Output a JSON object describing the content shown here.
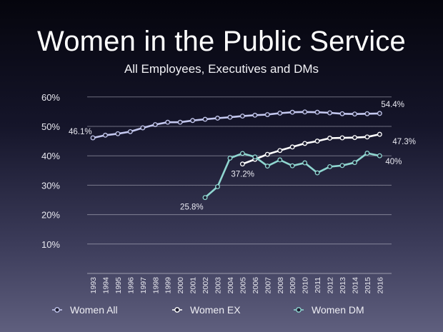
{
  "slide": {
    "title": "Women in the Public Service",
    "subtitle": "All Employees, Executives and DMs"
  },
  "chart_data": {
    "type": "line",
    "title": "Women in the Public Service",
    "subtitle": "All Employees, Executives and DMs",
    "xlabel": "",
    "ylabel": "",
    "categories": [
      "1993",
      "1994",
      "1995",
      "1996",
      "1997",
      "1998",
      "1999",
      "2000",
      "2001",
      "2002",
      "2003",
      "2004",
      "2005",
      "2006",
      "2007",
      "2008",
      "2009",
      "2010",
      "2011",
      "2012",
      "2013",
      "2014",
      "2015",
      "2016"
    ],
    "ylim": [
      0,
      60
    ],
    "yticks": [
      {
        "value": 10,
        "label": "10%"
      },
      {
        "value": 20,
        "label": "20%"
      },
      {
        "value": 30,
        "label": "30%"
      },
      {
        "value": 40,
        "label": "40%"
      },
      {
        "value": 50,
        "label": "50%"
      },
      {
        "value": 60,
        "label": "60%"
      }
    ],
    "grid": true,
    "legend_position": "bottom",
    "series": [
      {
        "name": "Women All",
        "color": "#c4c8ef",
        "values": [
          46.1,
          47.0,
          47.5,
          48.2,
          49.5,
          50.6,
          51.4,
          51.4,
          52.0,
          52.4,
          52.8,
          53.1,
          53.5,
          53.8,
          54.0,
          54.5,
          54.8,
          54.9,
          54.8,
          54.6,
          54.3,
          54.2,
          54.3,
          54.4
        ],
        "data_labels": [
          {
            "index": 0,
            "text": "46.1%"
          },
          {
            "index": 23,
            "text": "54.4%"
          }
        ]
      },
      {
        "name": "Women EX",
        "color": "#ffffff",
        "values": [
          null,
          null,
          null,
          null,
          null,
          null,
          null,
          null,
          null,
          null,
          null,
          null,
          37.2,
          38.8,
          40.5,
          41.8,
          43.0,
          44.2,
          45.0,
          46.0,
          46.1,
          46.2,
          46.4,
          47.3
        ],
        "data_labels": [
          {
            "index": 12,
            "text": "37.2%"
          },
          {
            "index": 23,
            "text": "47.3%"
          }
        ]
      },
      {
        "name": "Women DM",
        "color": "#8fd6d0",
        "values": [
          null,
          null,
          null,
          null,
          null,
          null,
          null,
          null,
          null,
          25.8,
          29.5,
          39.2,
          40.8,
          39.6,
          36.5,
          38.6,
          36.6,
          37.6,
          34.2,
          36.3,
          36.7,
          37.7,
          40.9,
          40.0
        ],
        "data_labels": [
          {
            "index": 9,
            "text": "25.8%"
          },
          {
            "index": 23,
            "text": "40%"
          }
        ]
      }
    ]
  }
}
